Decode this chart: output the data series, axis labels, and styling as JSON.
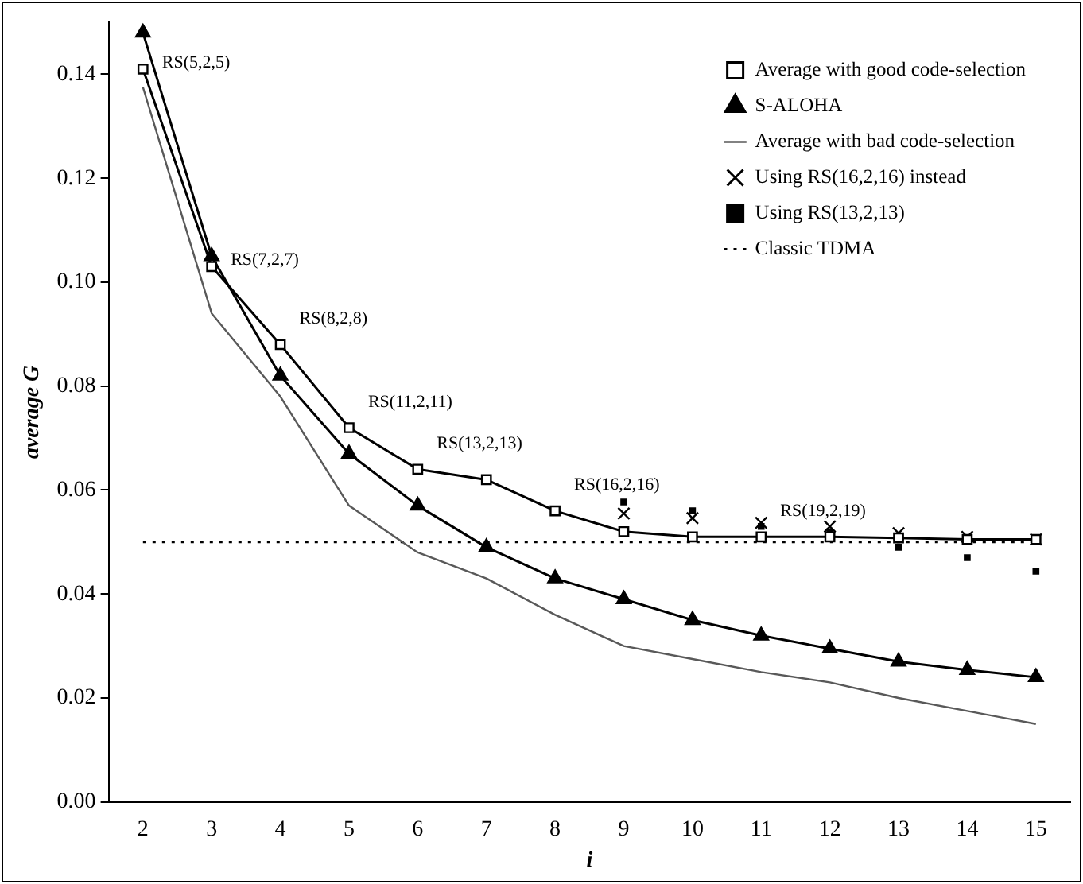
{
  "chart_data": {
    "type": "line",
    "xlabel": "i",
    "ylabel": "average G",
    "categories": [
      "2",
      "3",
      "4",
      "5",
      "6",
      "7",
      "8",
      "9",
      "10",
      "11",
      "12",
      "13",
      "14",
      "15"
    ],
    "ylim": [
      0,
      0.15
    ],
    "yticks": [
      {
        "value": 0,
        "label": "0.00"
      },
      {
        "value": 0.02,
        "label": "0.02"
      },
      {
        "value": 0.04,
        "label": "0.04"
      },
      {
        "value": 0.06,
        "label": "0.06"
      },
      {
        "value": 0.08,
        "label": "0.08"
      },
      {
        "value": 0.1,
        "label": "0.10"
      },
      {
        "value": 0.12,
        "label": "0.12"
      },
      {
        "value": 0.14,
        "label": "0.14"
      }
    ],
    "grid": false,
    "legend": "top right",
    "series": [
      {
        "name": "Average with good code-selection",
        "marker": "square",
        "line_style": "solid",
        "color": "#000000",
        "values": [
          0.141,
          0.103,
          0.088,
          0.072,
          0.064,
          0.062,
          0.056,
          0.052,
          0.051,
          0.051,
          0.051,
          0.0508,
          0.0505,
          0.0505
        ]
      },
      {
        "name": "S-ALOHA",
        "marker": "triangle",
        "line_style": "solid",
        "color": "#000000",
        "values": [
          0.148,
          0.105,
          0.082,
          0.067,
          0.057,
          0.049,
          0.043,
          0.039,
          0.035,
          0.032,
          0.0295,
          0.027,
          0.0254,
          0.024
        ]
      },
      {
        "name": "Average with bad code-selection",
        "marker": "none",
        "line_style": "solid",
        "color": "#595959",
        "values": [
          0.1375,
          0.094,
          0.078,
          0.057,
          0.048,
          0.043,
          0.036,
          0.03,
          0.0275,
          0.025,
          0.023,
          0.02,
          0.0175,
          0.015
        ]
      },
      {
        "name": "Using RS(16,2,16) instead",
        "type": "scatter",
        "marker": "cross",
        "color": "#000000",
        "values": [
          null,
          null,
          null,
          null,
          null,
          null,
          null,
          0.0555,
          0.0546,
          0.0537,
          0.053,
          0.0517,
          0.051,
          0.0505
        ]
      },
      {
        "name": "Using RS(13,2,13)",
        "type": "scatter",
        "marker": "square",
        "color": "#000000",
        "values": [
          null,
          null,
          null,
          null,
          null,
          null,
          null,
          0.0577,
          0.056,
          0.053,
          0.052,
          0.049,
          0.047,
          0.0444
        ]
      },
      {
        "name": "Classic TDMA",
        "marker": "none",
        "line_style": "dotted",
        "color": "#000000",
        "values": [
          0.05,
          0.05,
          0.05,
          0.05,
          0.05,
          0.05,
          0.05,
          0.05,
          0.05,
          0.05,
          0.05,
          0.05,
          0.05,
          0.05
        ]
      }
    ],
    "annotations": [
      {
        "text": "RS(5,2,5)",
        "x": "2",
        "y": 0.141
      },
      {
        "text": "RS(7,2,7)",
        "x": "3",
        "y": 0.103
      },
      {
        "text": "RS(8,2,8)",
        "x": "4",
        "y": 0.088
      },
      {
        "text": "RS(11,2,11)",
        "x": "5",
        "y": 0.072
      },
      {
        "text": "RS(13,2,13)",
        "x": "6",
        "y": 0.064
      },
      {
        "text": "RS(16,2,16)",
        "x": "8",
        "y": 0.056
      },
      {
        "text": "RS(19,2,19)",
        "x": "11",
        "y": 0.051
      }
    ]
  }
}
